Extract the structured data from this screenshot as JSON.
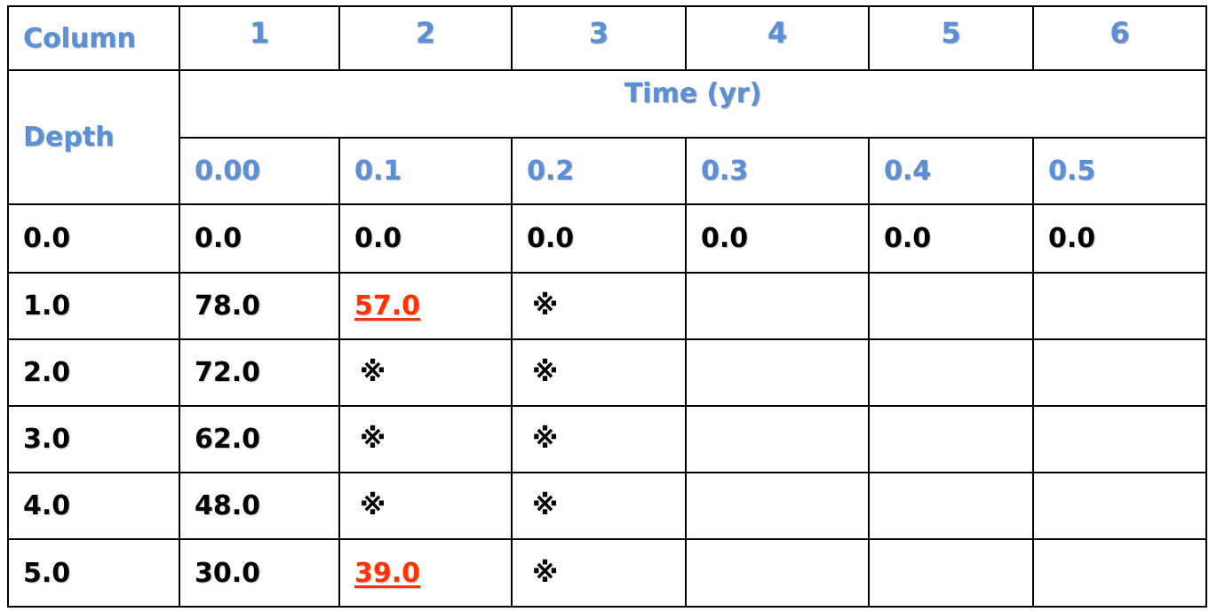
{
  "header": {
    "column_label": "Column",
    "column_numbers": [
      "1",
      "2",
      "3",
      "4",
      "5",
      "6"
    ],
    "depth_label": "Depth",
    "time_label": "Time (yr)",
    "time_values": [
      "0.00",
      "0.1",
      "0.2",
      "0.3",
      "0.4",
      "0.5"
    ]
  },
  "rows": [
    {
      "depth": "0.0",
      "cells": [
        "0.0",
        "0.0",
        "0.0",
        "0.0",
        "0.0",
        "0.0"
      ]
    },
    {
      "depth": "1.0",
      "cells": [
        "78.0",
        "57.0",
        "※",
        "",
        "",
        ""
      ]
    },
    {
      "depth": "2.0",
      "cells": [
        "72.0",
        "※",
        "※",
        "",
        "",
        ""
      ]
    },
    {
      "depth": "3.0",
      "cells": [
        "62.0",
        "※",
        "※",
        "",
        "",
        ""
      ]
    },
    {
      "depth": "4.0",
      "cells": [
        "48.0",
        "※",
        "※",
        "",
        "",
        ""
      ]
    },
    {
      "depth": "5.0",
      "cells": [
        "30.0",
        "39.0",
        "※",
        "",
        "",
        ""
      ]
    }
  ],
  "colors": {
    "header_text": "#5b8fd6",
    "highlight": "#ff3300",
    "border": "#000000"
  }
}
